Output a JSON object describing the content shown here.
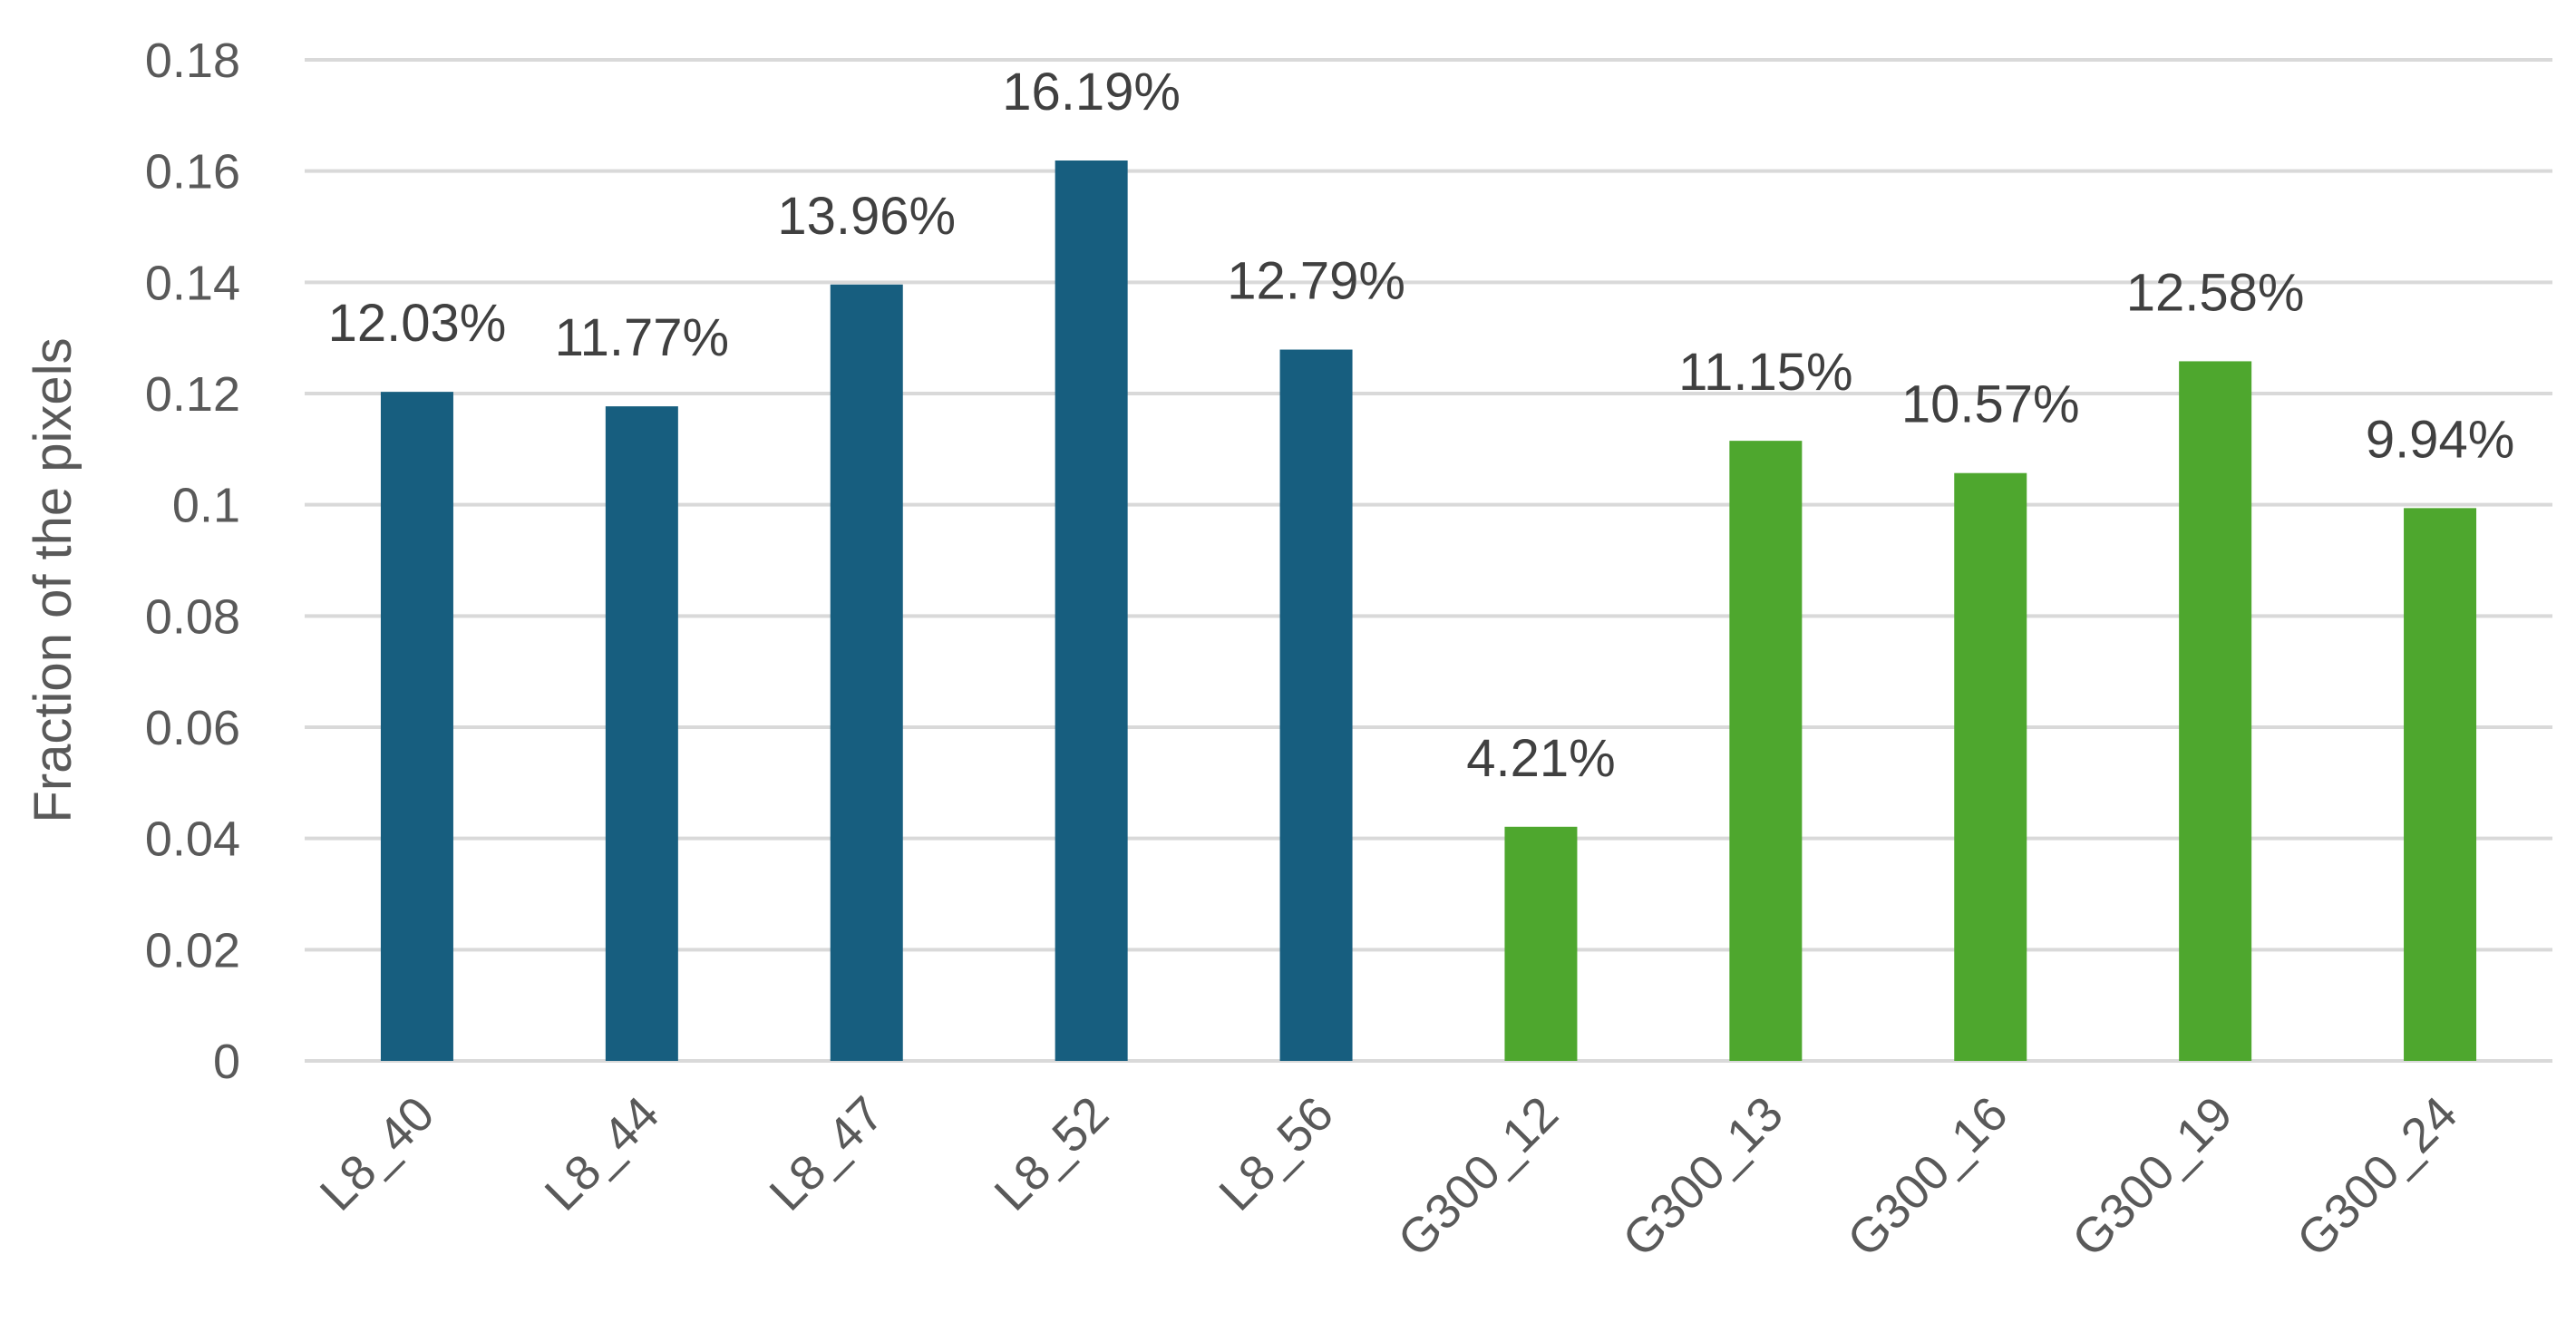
{
  "chart_data": {
    "type": "bar",
    "ylabel": "Fraction of the pixels",
    "xlabel": "",
    "ylim": [
      0,
      0.18
    ],
    "y_ticks": [
      "0",
      "0.02",
      "0.04",
      "0.06",
      "0.08",
      "0.1",
      "0.12",
      "0.14",
      "0.16",
      "0.18"
    ],
    "grid": true,
    "categories": [
      "L8_40",
      "L8_44",
      "L8_47",
      "L8_52",
      "L8_56",
      "G300_12",
      "G300_13",
      "G300_16",
      "G300_19",
      "G300_24"
    ],
    "values": [
      0.1203,
      0.1177,
      0.1396,
      0.1619,
      0.1279,
      0.0421,
      0.1115,
      0.1057,
      0.1258,
      0.0994
    ],
    "data_labels": [
      "12.03%",
      "11.77%",
      "13.96%",
      "16.19%",
      "12.79%",
      "4.21%",
      "11.15%",
      "10.57%",
      "12.58%",
      "9.94%"
    ],
    "bar_colors": [
      "#175e7f",
      "#175e7f",
      "#175e7f",
      "#175e7f",
      "#175e7f",
      "#4ea72e",
      "#4ea72e",
      "#4ea72e",
      "#4ea72e",
      "#4ea72e"
    ]
  }
}
